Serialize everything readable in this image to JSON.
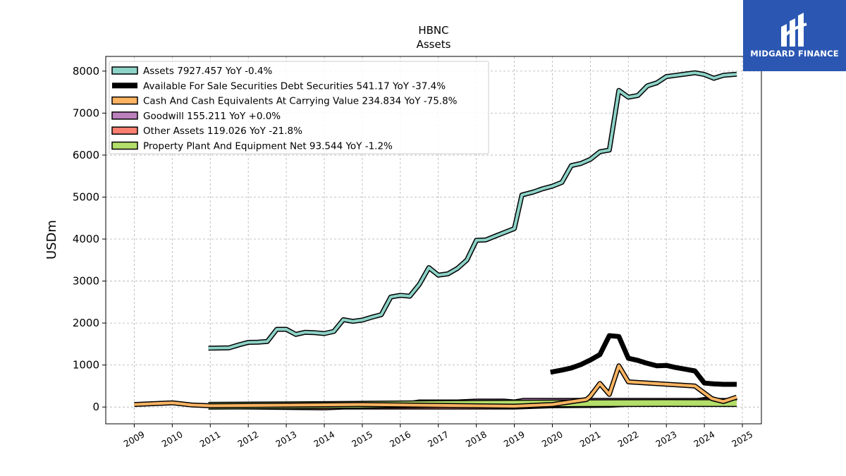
{
  "chart_data": {
    "type": "line",
    "title": "HBNC",
    "subtitle": "Assets",
    "xlabel": "",
    "ylabel": "USDm",
    "xlim": [
      2008.25,
      2025.5
    ],
    "ylim": [
      -400,
      8350
    ],
    "x_ticks": [
      2009,
      2010,
      2011,
      2012,
      2013,
      2014,
      2015,
      2016,
      2017,
      2018,
      2019,
      2020,
      2021,
      2022,
      2023,
      2024,
      2025
    ],
    "y_ticks": [
      0,
      1000,
      2000,
      3000,
      4000,
      5000,
      6000,
      7000,
      8000
    ],
    "grid": true,
    "legend_position": "top-left",
    "series": [
      {
        "name": "Assets",
        "legend_label": "Assets  7927.457 YoY -0.4%",
        "color": "#8dd3c7",
        "width": 4,
        "points": [
          [
            2010.95,
            1400
          ],
          [
            2011.5,
            1410
          ],
          [
            2011.75,
            1480
          ],
          [
            2012.0,
            1540
          ],
          [
            2012.25,
            1545
          ],
          [
            2012.5,
            1560
          ],
          [
            2012.75,
            1850
          ],
          [
            2013.0,
            1850
          ],
          [
            2013.25,
            1730
          ],
          [
            2013.5,
            1780
          ],
          [
            2013.75,
            1770
          ],
          [
            2014.0,
            1750
          ],
          [
            2014.25,
            1800
          ],
          [
            2014.5,
            2080
          ],
          [
            2014.75,
            2040
          ],
          [
            2015.0,
            2070
          ],
          [
            2015.25,
            2140
          ],
          [
            2015.5,
            2200
          ],
          [
            2015.75,
            2620
          ],
          [
            2016.0,
            2660
          ],
          [
            2016.25,
            2640
          ],
          [
            2016.5,
            2920
          ],
          [
            2016.75,
            3320
          ],
          [
            2017.0,
            3140
          ],
          [
            2017.25,
            3170
          ],
          [
            2017.5,
            3300
          ],
          [
            2017.75,
            3500
          ],
          [
            2018.0,
            3970
          ],
          [
            2018.25,
            3980
          ],
          [
            2018.5,
            4070
          ],
          [
            2018.75,
            4160
          ],
          [
            2019.0,
            4250
          ],
          [
            2019.2,
            5050
          ],
          [
            2019.5,
            5120
          ],
          [
            2019.75,
            5200
          ],
          [
            2020.0,
            5260
          ],
          [
            2020.25,
            5350
          ],
          [
            2020.5,
            5750
          ],
          [
            2020.75,
            5800
          ],
          [
            2021.0,
            5900
          ],
          [
            2021.25,
            6080
          ],
          [
            2021.5,
            6120
          ],
          [
            2021.75,
            7540
          ],
          [
            2022.0,
            7380
          ],
          [
            2022.25,
            7420
          ],
          [
            2022.5,
            7650
          ],
          [
            2022.75,
            7720
          ],
          [
            2023.0,
            7870
          ],
          [
            2023.25,
            7900
          ],
          [
            2023.5,
            7930
          ],
          [
            2023.75,
            7960
          ],
          [
            2024.0,
            7920
          ],
          [
            2024.25,
            7830
          ],
          [
            2024.5,
            7900
          ],
          [
            2024.85,
            7927.457
          ]
        ]
      },
      {
        "name": "Available For Sale Securities Debt Securities",
        "legend_label": "Available For Sale Securities Debt Securities  541.17 YoY -37.4%",
        "color": "#000000",
        "width": 7,
        "points": [
          [
            2019.95,
            830
          ],
          [
            2020.25,
            880
          ],
          [
            2020.5,
            930
          ],
          [
            2020.75,
            1010
          ],
          [
            2021.0,
            1120
          ],
          [
            2021.25,
            1250
          ],
          [
            2021.5,
            1700
          ],
          [
            2021.75,
            1680
          ],
          [
            2022.0,
            1160
          ],
          [
            2022.25,
            1110
          ],
          [
            2022.5,
            1040
          ],
          [
            2022.75,
            980
          ],
          [
            2023.0,
            990
          ],
          [
            2023.25,
            940
          ],
          [
            2023.5,
            900
          ],
          [
            2023.75,
            860
          ],
          [
            2024.0,
            570
          ],
          [
            2024.25,
            550
          ],
          [
            2024.5,
            540
          ],
          [
            2024.85,
            541.17
          ]
        ]
      },
      {
        "name": "Cash And Cash Equivalents At Carrying Value",
        "legend_label": "Cash And Cash Equivalents At Carrying Value  234.834 YoY -75.8%",
        "color": "#fdb462",
        "width": 4,
        "points": [
          [
            2009.0,
            60
          ],
          [
            2010.0,
            100
          ],
          [
            2010.5,
            50
          ],
          [
            2011.0,
            30
          ],
          [
            2015.0,
            60
          ],
          [
            2019.0,
            20
          ],
          [
            2020.0,
            60
          ],
          [
            2020.9,
            180
          ],
          [
            2021.0,
            260
          ],
          [
            2021.25,
            560
          ],
          [
            2021.5,
            300
          ],
          [
            2021.75,
            980
          ],
          [
            2022.0,
            600
          ],
          [
            2023.75,
            500
          ],
          [
            2024.2,
            200
          ],
          [
            2024.5,
            130
          ],
          [
            2024.85,
            234.834
          ]
        ]
      },
      {
        "name": "Goodwill",
        "legend_label": "Goodwill  155.211 YoY +0.0%",
        "color": "#bc80bd",
        "width": 4,
        "points": [
          [
            2011.0,
            40
          ],
          [
            2016.0,
            50
          ],
          [
            2016.5,
            120
          ],
          [
            2017.5,
            120
          ],
          [
            2018.0,
            140
          ],
          [
            2018.75,
            140
          ],
          [
            2019.0,
            120
          ],
          [
            2019.25,
            160
          ],
          [
            2024.5,
            155.211
          ],
          [
            2024.85,
            155.211
          ]
        ]
      },
      {
        "name": "Other Assets",
        "legend_label": "Other Assets  119.026 YoY -21.8%",
        "color": "#fb8072",
        "width": 4,
        "points": [
          [
            2011.0,
            10
          ],
          [
            2014.0,
            -20
          ],
          [
            2014.5,
            0
          ],
          [
            2019.0,
            0
          ],
          [
            2020.0,
            30
          ],
          [
            2021.5,
            40
          ],
          [
            2022.5,
            90
          ],
          [
            2023.5,
            110
          ],
          [
            2024.0,
            180
          ],
          [
            2024.5,
            150
          ],
          [
            2024.85,
            119.026
          ]
        ]
      },
      {
        "name": "Property Plant And Equipment Net",
        "legend_label": "Property Plant And Equipment Net  93.544 YoY -1.2%",
        "color": "#b3de69",
        "width": 8,
        "points": [
          [
            2010.95,
            30
          ],
          [
            2013.0,
            40
          ],
          [
            2015.0,
            55
          ],
          [
            2017.0,
            70
          ],
          [
            2019.0,
            80
          ],
          [
            2021.0,
            90
          ],
          [
            2023.0,
            95
          ],
          [
            2024.85,
            93.544
          ]
        ]
      }
    ]
  },
  "brand": {
    "name": "MIDGARD FINANCE"
  }
}
